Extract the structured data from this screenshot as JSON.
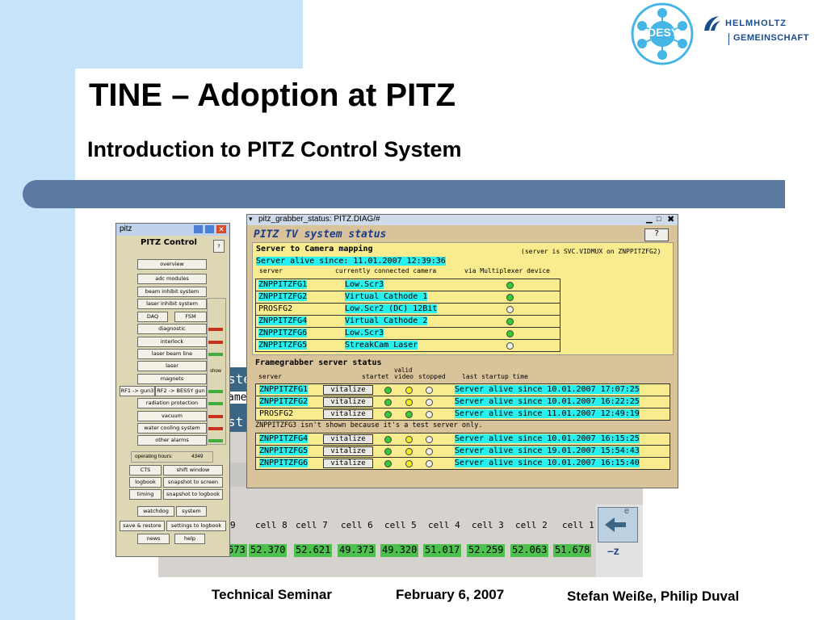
{
  "slide": {
    "title": "TINE – Adoption at PITZ",
    "subtitle": "Introduction to PITZ Control System",
    "footer": {
      "left": "Technical Seminar",
      "center": "February 6, 2007",
      "right": "Stefan Weiße, Philip Duval"
    },
    "logo": {
      "desy": "DESY",
      "helmholtz_line1": "HELMHOLTZ",
      "helmholtz_line2": "GEMEINSCHAFT"
    }
  },
  "pitz_window": {
    "title": "pitz",
    "heading": "PITZ Control",
    "help": "?",
    "buttons": [
      "overview",
      "adc modules",
      "beam inhibit system",
      "laser inhibit system",
      "DAQ",
      "FSM",
      "diagnostic",
      "interlock",
      "laser beam line",
      "laser",
      "magnets",
      "RF1 -> gun3",
      "RF2 -> BESSY gun",
      "radiation protection",
      "vacuum",
      "water cooling system",
      "other alarms"
    ],
    "show_label": "show",
    "operating_hours_label": "operating hours:",
    "operating_hours_value": "4349",
    "bottom_buttons": [
      "CTS",
      "shift window",
      "logbook",
      "snapshot to screen",
      "timing",
      "snapshot to logbook",
      "watchdog",
      "system",
      "save & restore",
      "settings to logbook",
      "news",
      "help"
    ]
  },
  "grabber_window": {
    "title": "pitz_grabber_status: PITZ.DIAG/#",
    "heading": "PITZ TV system status",
    "help": "?",
    "mapping": {
      "section_title": "Server to Camera mapping",
      "server_note": "(server is SVC.VIDMUX on ZNPPITZFG2)",
      "alive": "Server alive since: 11.01.2007 12:39:36",
      "col_headers": [
        "server",
        "currently connected camera",
        "via Multiplexer device"
      ],
      "rows": [
        {
          "server": "ZNPPITZFG1",
          "camera": "Low.Scr3",
          "status": "green"
        },
        {
          "server": "ZNPPITZFG2",
          "camera": "Virtual Cathode 1",
          "status": "green"
        },
        {
          "server": "PROSFG2",
          "camera": "Low.Scr2 (DC) 12Bit",
          "status": "white"
        },
        {
          "server": "ZNPPITZFG4",
          "camera": "Virtual Cathode 2",
          "status": "green"
        },
        {
          "server": "ZNPPITZFG6",
          "camera": "Low.Scr3",
          "status": "green"
        },
        {
          "server": "ZNPPITZFG5",
          "camera": "StreakCam Laser",
          "status": "white"
        }
      ]
    },
    "framegrabber": {
      "section_title": "Framegrabber server status",
      "col_server": "server",
      "col_startet": "startet",
      "col_valid": "valid",
      "col_video": "video",
      "col_stopped": "stopped",
      "col_last": "last startup time",
      "vitalize_label": "vitalize",
      "note": "ZNPPITZFG3 isn't shown because it's a test server only.",
      "rows": [
        {
          "server": "ZNPPITZFG1",
          "status": "Server alive since 10.01.2007 17:07:25",
          "valid": "yellow"
        },
        {
          "server": "ZNPPITZFG2",
          "status": "Server alive since 10.01.2007 16:22:25",
          "valid": "yellow"
        },
        {
          "server": "PROSFG2",
          "status": "Server alive since 11.01.2007 12:49:19",
          "valid": "green"
        },
        {
          "server": "ZNPPITZFG4",
          "status": "Server alive since 10.01.2007 16:15:25",
          "valid": "yellow"
        },
        {
          "server": "ZNPPITZFG5",
          "status": "Server alive since 19.01.2007 15:54:43",
          "valid": "yellow"
        },
        {
          "server": "ZNPPITZFG6",
          "status": "Server alive since 10.01.2007 16:15:40",
          "valid": "yellow"
        }
      ]
    }
  },
  "background_panel": {
    "cells": [
      "9",
      "cell 8",
      "cell 7",
      "cell 6",
      "cell 5",
      "cell 4",
      "cell 3",
      "cell 2",
      "cell 1"
    ],
    "values": [
      "673",
      "52.370",
      "52.621",
      "49.373",
      "49.320",
      "51.017",
      "52.259",
      "52.063",
      "51.678"
    ],
    "partial_labels": [
      "ste",
      "ame",
      "st"
    ],
    "direction": "–z",
    "beam_label": "e"
  }
}
